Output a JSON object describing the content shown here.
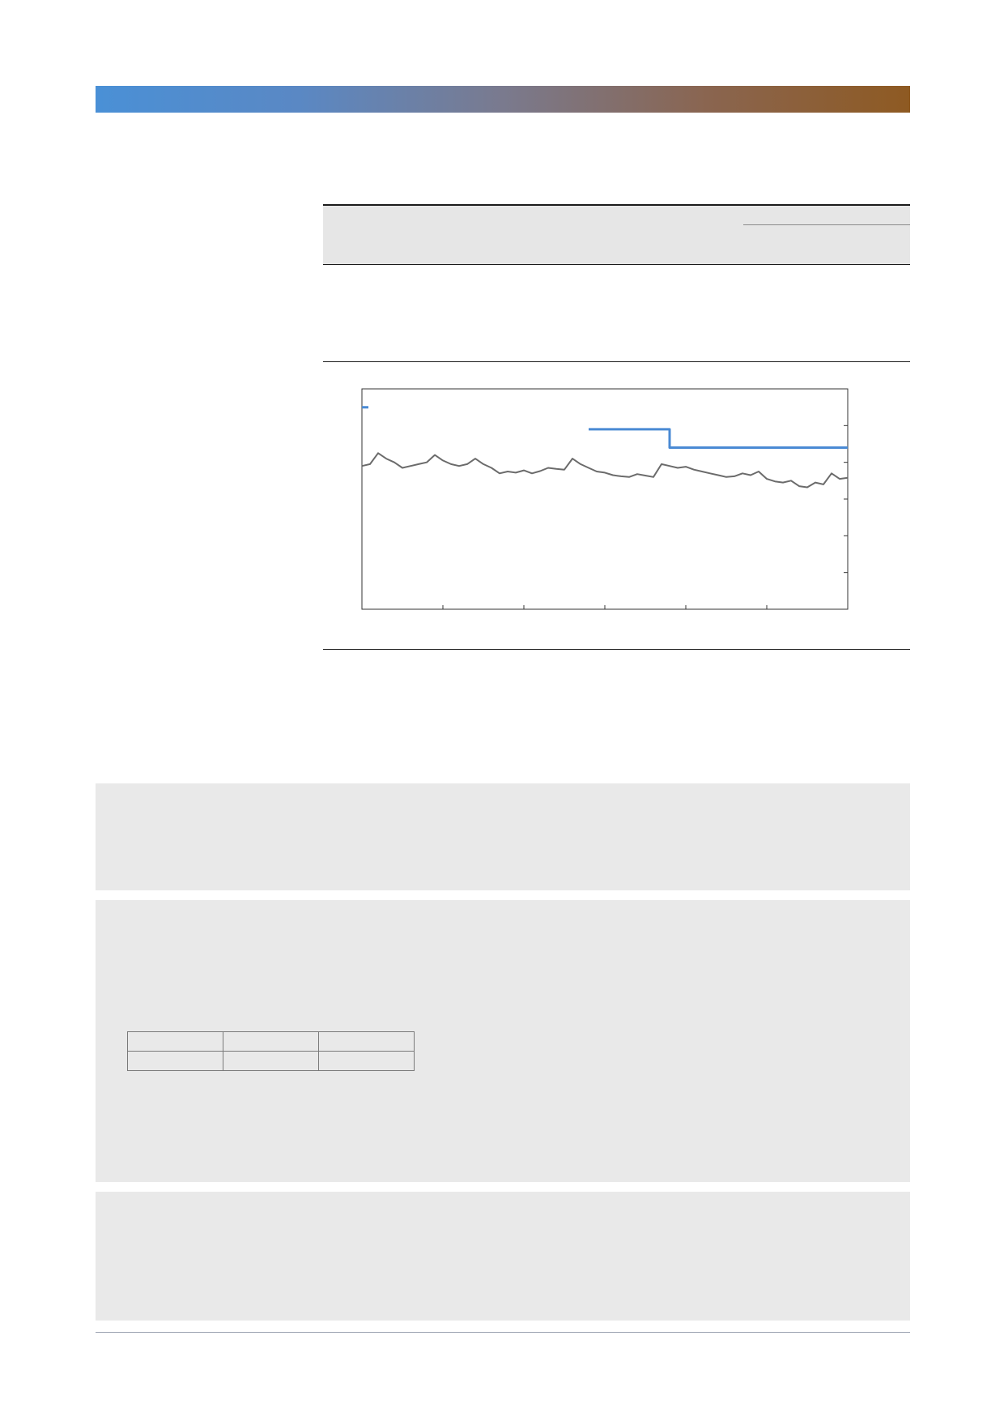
{
  "theme": {
    "header_gradient": [
      "#4a90d6",
      "#8e5a22"
    ],
    "panel_bg": "#e9e9e9",
    "table_header_bg": "#e6e6e6"
  },
  "chart_data": {
    "type": "line",
    "title": "",
    "xlabel": "",
    "ylabel": "",
    "x": [
      0,
      1,
      2,
      3,
      4,
      5,
      6,
      7,
      8,
      9,
      10,
      11,
      12,
      13,
      14,
      15,
      16,
      17,
      18,
      19,
      20,
      21,
      22,
      23,
      24,
      25,
      26,
      27,
      28,
      29,
      30,
      31,
      32,
      33,
      34,
      35,
      36,
      37,
      38,
      39,
      40,
      41,
      42,
      43,
      44,
      45,
      46,
      47,
      48,
      49,
      50,
      51,
      52,
      53,
      54,
      55,
      56,
      57,
      58,
      59,
      60
    ],
    "xlim": [
      0,
      60
    ],
    "ylim": [
      0,
      6
    ],
    "series": [
      {
        "color": "#4a8ad4",
        "values": [
          5.5,
          null,
          null,
          null,
          null,
          null,
          null,
          null,
          null,
          null,
          null,
          null,
          null,
          null,
          null,
          null,
          null,
          null,
          null,
          null,
          null,
          null,
          null,
          null,
          null,
          null,
          null,
          null,
          4.9,
          4.9,
          4.9,
          4.9,
          4.9,
          4.9,
          4.9,
          4.9,
          4.9,
          4.9,
          4.4,
          4.4,
          4.4,
          4.4,
          4.4,
          4.4,
          4.4,
          4.4,
          4.4,
          4.4,
          4.4,
          4.4,
          4.4,
          4.4,
          4.4,
          4.4,
          4.4,
          4.4,
          4.4,
          4.4,
          4.4,
          4.4,
          4.4
        ]
      },
      {
        "color": "#6b6b6b",
        "values": [
          3.9,
          3.95,
          4.25,
          4.1,
          4.0,
          3.85,
          3.9,
          3.95,
          4.0,
          4.2,
          4.05,
          3.95,
          3.9,
          3.95,
          4.1,
          3.95,
          3.85,
          3.7,
          3.75,
          3.72,
          3.78,
          3.7,
          3.76,
          3.85,
          3.82,
          3.8,
          4.1,
          3.95,
          3.85,
          3.75,
          3.72,
          3.65,
          3.62,
          3.6,
          3.68,
          3.64,
          3.6,
          3.95,
          3.9,
          3.85,
          3.88,
          3.8,
          3.75,
          3.7,
          3.65,
          3.6,
          3.62,
          3.7,
          3.65,
          3.75,
          3.55,
          3.48,
          3.45,
          3.5,
          3.35,
          3.32,
          3.45,
          3.4,
          3.7,
          3.55,
          3.58
        ]
      }
    ],
    "grid": false,
    "legend": "none"
  }
}
